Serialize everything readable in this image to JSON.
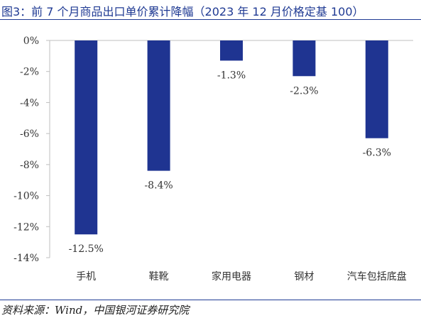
{
  "title": "图3：前 7 个月商品出口单价累计降幅（2023 年 12 月价格定基 100）",
  "source": "资料来源：Wind，中国银河证券研究院",
  "colors": {
    "bar": "#1f3491",
    "title": "#1f3a93"
  },
  "chart_data": {
    "type": "bar",
    "categories": [
      "手机",
      "鞋靴",
      "家用电器",
      "钢材",
      "汽车包括底盘"
    ],
    "values": [
      -12.5,
      -8.4,
      -1.3,
      -2.3,
      -6.3
    ],
    "data_labels": [
      "-12.5%",
      "-8.4%",
      "-1.3%",
      "-2.3%",
      "-6.3%"
    ],
    "y_ticks": [
      "0%",
      "-2%",
      "-4%",
      "-6%",
      "-8%",
      "-10%",
      "-12%",
      "-14%"
    ],
    "ylim": [
      -14,
      0
    ],
    "grid": false,
    "legend": false
  }
}
